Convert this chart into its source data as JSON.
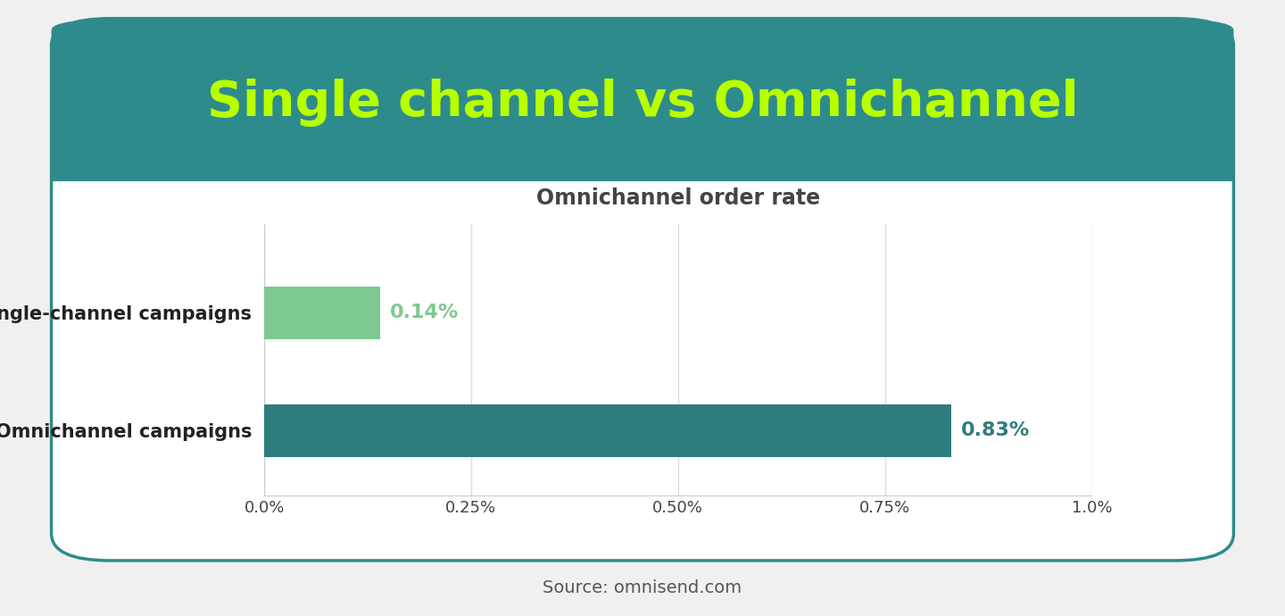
{
  "title": "Single channel vs Omnichannel",
  "subtitle": "Omnichannel order rate",
  "categories": [
    "Single-channel campaigns",
    "Omnichannel campaigns"
  ],
  "values": [
    0.14,
    0.83
  ],
  "bar_colors": [
    "#7dc98f",
    "#2e7d7d"
  ],
  "value_labels": [
    "0.14%",
    "0.83%"
  ],
  "value_label_colors": [
    "#7dc98f",
    "#2e7d7d"
  ],
  "xlim": [
    0,
    1.0
  ],
  "xtick_vals": [
    0.0,
    0.25,
    0.5,
    0.75,
    1.0
  ],
  "xtick_labels": [
    "0.0%",
    "0.25%",
    "0.50%",
    "0.75%",
    "1.0%"
  ],
  "source_text": "Source: omnisend.com",
  "title_color": "#b8ff00",
  "title_bg_color": "#2e8b8b",
  "card_bg_color": "#ffffff",
  "page_bg_color": "#f0f0f0",
  "subtitle_color": "#444444",
  "category_label_color": "#222222",
  "subtitle_fontsize": 17,
  "title_fontsize": 40,
  "category_fontsize": 15,
  "value_label_fontsize": 16,
  "source_fontsize": 14,
  "bar_height": 0.45,
  "grid_color": "#dddddd",
  "card_edge_color": "#2e8b8b",
  "card_edge_width": 2.5
}
